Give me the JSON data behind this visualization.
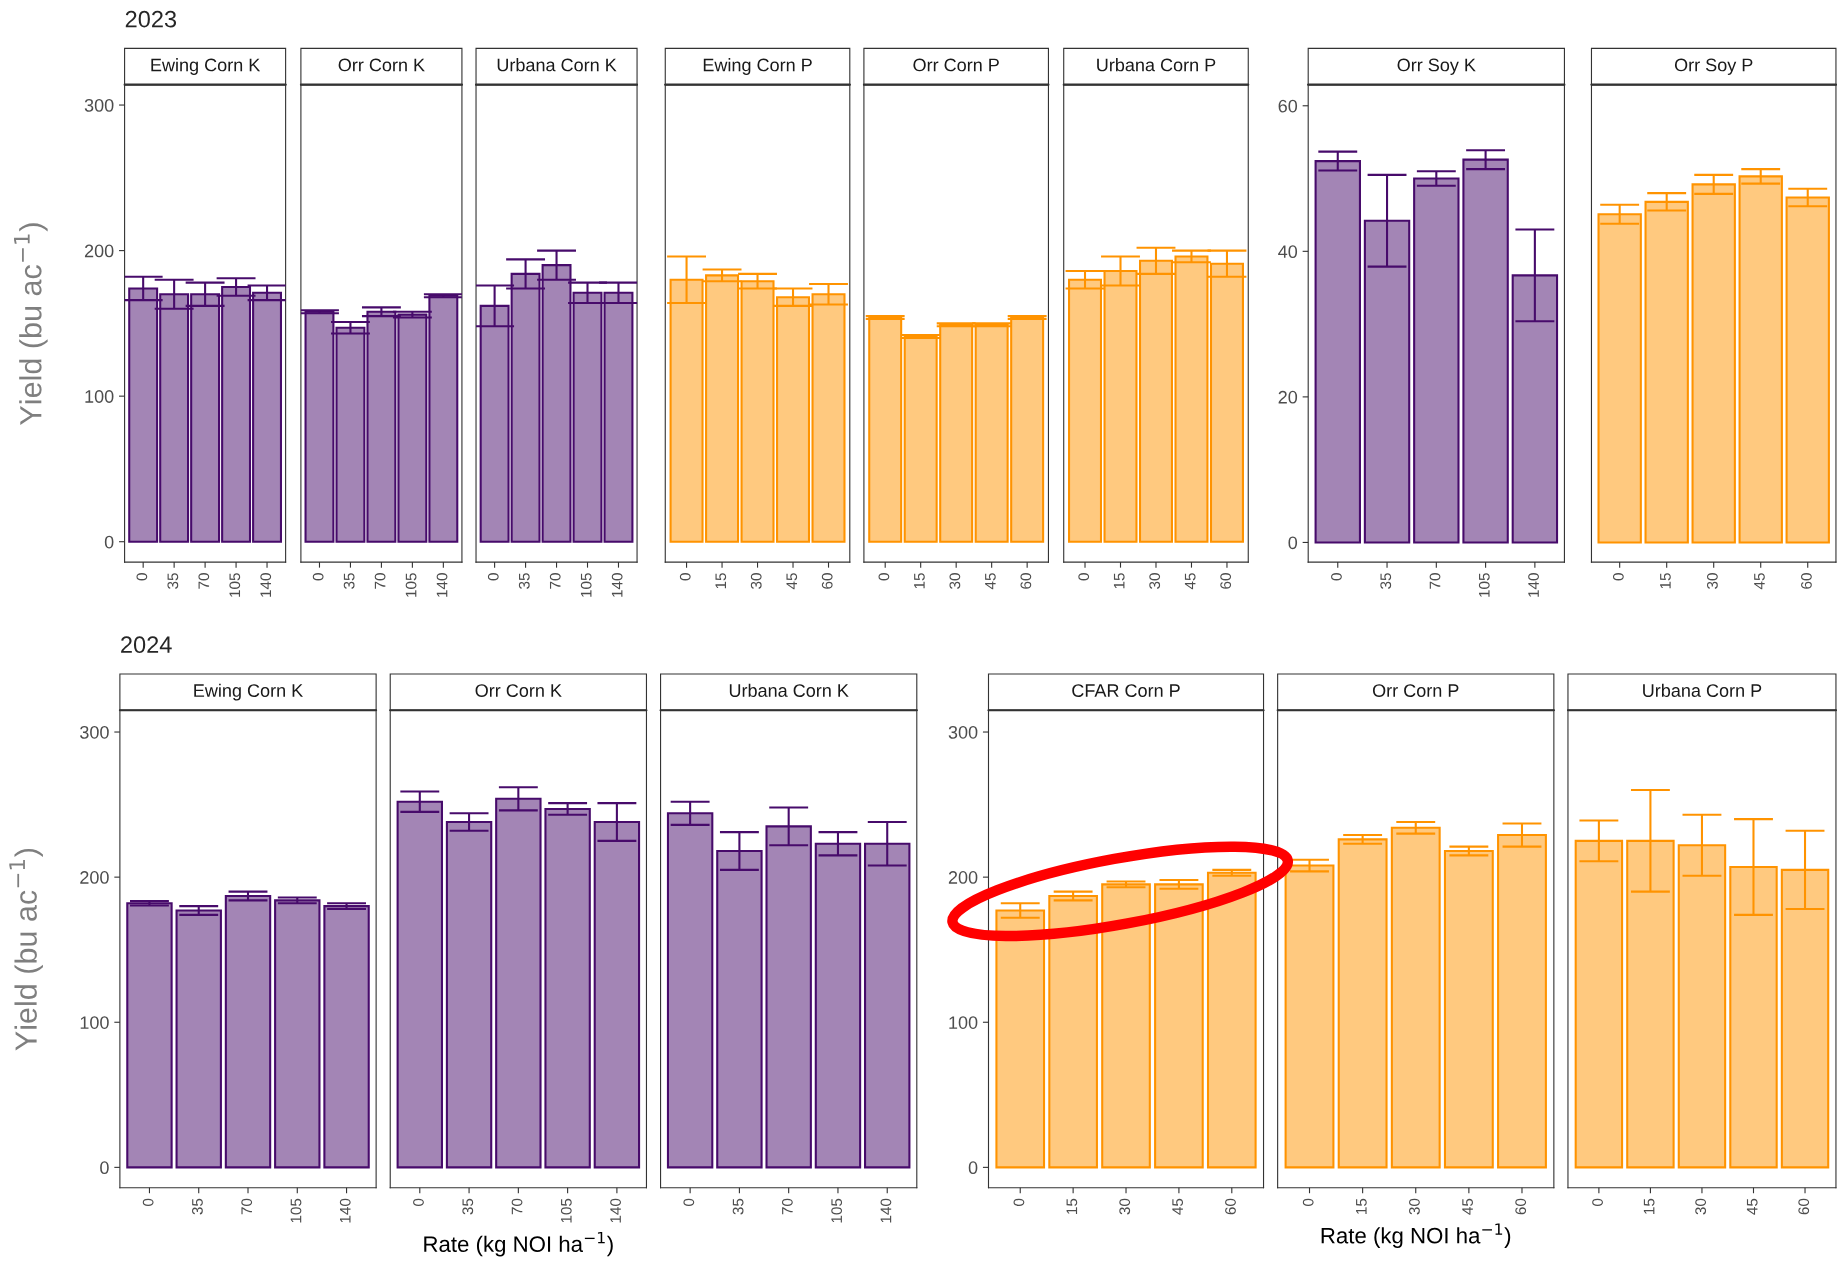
{
  "chart_data": [
    {
      "type": "bar",
      "title": "Ewing Corn K",
      "annotations": [
        "2023"
      ],
      "ylabel": "Yield (bu ac$^{−1}$)",
      "categories": [
        "0",
        "35",
        "70",
        "105",
        "140"
      ],
      "color": "#a385b5",
      "values": [
        174,
        170,
        170,
        175,
        171
      ],
      "errors": [
        8,
        10,
        8,
        6,
        5
      ],
      "ylim": [
        -14,
        314
      ],
      "yticks": [
        0,
        100,
        200,
        300
      ]
    },
    {
      "type": "bar",
      "title": "Orr Corn K",
      "categories": [
        "0",
        "35",
        "70",
        "105",
        "140"
      ],
      "color": "#a385b5",
      "values": [
        158,
        147,
        158,
        156,
        169
      ],
      "errors": [
        1,
        4,
        3,
        2,
        1
      ],
      "ylim": [
        -14,
        314
      ],
      "yticks": [
        0,
        100,
        200,
        300
      ],
      "tick_labels": "x"
    },
    {
      "type": "bar",
      "title": "Urbana Corn K",
      "categories": [
        "0",
        "35",
        "70",
        "105",
        "140"
      ],
      "color": "#a385b5",
      "values": [
        162,
        184,
        190,
        171,
        171
      ],
      "errors": [
        14,
        10,
        10,
        7,
        7
      ],
      "ylim": [
        -14,
        314
      ],
      "yticks": [
        0,
        100,
        200,
        300
      ],
      "tick_labels": "x"
    },
    {
      "type": "bar",
      "title": "Ewing Corn P",
      "categories": [
        "0",
        "15",
        "30",
        "45",
        "60"
      ],
      "color": "#ffc97f",
      "values": [
        180,
        183,
        179,
        168,
        170
      ],
      "errors": [
        16,
        4,
        5,
        6,
        7
      ],
      "ylim": [
        -14,
        314
      ],
      "yticks": [
        0,
        100,
        200,
        300
      ],
      "tick_labels": "x"
    },
    {
      "type": "bar",
      "title": "Orr Corn P",
      "categories": [
        "0",
        "15",
        "30",
        "45",
        "60"
      ],
      "color": "#ffc97f",
      "values": [
        154,
        141,
        149,
        149,
        154
      ],
      "errors": [
        1,
        1,
        1,
        1,
        1
      ],
      "ylim": [
        -14,
        314
      ],
      "yticks": [
        0,
        100,
        200,
        300
      ],
      "tick_labels": "x"
    },
    {
      "type": "bar",
      "title": "Urbana Corn P",
      "categories": [
        "0",
        "15",
        "30",
        "45",
        "60"
      ],
      "color": "#ffc97f",
      "values": [
        180,
        186,
        193,
        196,
        191
      ],
      "errors": [
        6,
        10,
        9,
        4,
        9
      ],
      "ylim": [
        -14,
        314
      ],
      "yticks": [
        0,
        100,
        200,
        300
      ],
      "tick_labels": "x"
    },
    {
      "type": "bar",
      "title": "Orr Soy K",
      "categories": [
        "0",
        "35",
        "70",
        "105",
        "140"
      ],
      "color": "#a385b5",
      "values": [
        52.4,
        44.2,
        50.0,
        52.6,
        36.7
      ],
      "errors": [
        1.3,
        6.3,
        1.0,
        1.3,
        6.3
      ],
      "ylim": [
        -2.7,
        62.9
      ],
      "yticks": [
        0,
        20,
        40,
        60
      ]
    },
    {
      "type": "bar",
      "title": "Orr Soy P",
      "categories": [
        "0",
        "15",
        "30",
        "45",
        "60"
      ],
      "color": "#ffc97f",
      "values": [
        45.1,
        46.8,
        49.2,
        50.3,
        47.4
      ],
      "errors": [
        1.3,
        1.2,
        1.3,
        1.0,
        1.2
      ],
      "ylim": [
        -2.7,
        62.9
      ],
      "yticks": [
        0,
        20,
        40,
        60
      ],
      "tick_labels": "x"
    },
    {
      "type": "bar",
      "title": "Ewing Corn K",
      "annotations": [
        "2024"
      ],
      "ylabel": "Yield (bu ac$^{−1}$)",
      "categories": [
        "0",
        "35",
        "70",
        "105",
        "140"
      ],
      "color": "#a385b5",
      "values": [
        182,
        177,
        187,
        184,
        180
      ],
      "errors": [
        1.5,
        3,
        3,
        2,
        2
      ],
      "ylim": [
        -14,
        315
      ],
      "yticks": [
        0,
        100,
        200,
        300
      ]
    },
    {
      "type": "bar",
      "title": "Orr Corn K",
      "xlabel": "Rate (kg NOI ha$^{−1}$)",
      "categories": [
        "0",
        "35",
        "70",
        "105",
        "140"
      ],
      "color": "#a385b5",
      "values": [
        252,
        238,
        254,
        247,
        238
      ],
      "errors": [
        7,
        6,
        8,
        4,
        13
      ],
      "ylim": [
        -14,
        315
      ],
      "yticks": [
        0,
        100,
        200,
        300
      ],
      "tick_labels": "x"
    },
    {
      "type": "bar",
      "title": "Urbana Corn K",
      "categories": [
        "0",
        "35",
        "70",
        "105",
        "140"
      ],
      "color": "#a385b5",
      "values": [
        244,
        218,
        235,
        223,
        223
      ],
      "errors": [
        8,
        13,
        13,
        8,
        15
      ],
      "ylim": [
        -14,
        315
      ],
      "yticks": [
        0,
        100,
        200,
        300
      ],
      "tick_labels": "x"
    },
    {
      "type": "bar",
      "title": "CFAR Corn P",
      "categories": [
        "0",
        "15",
        "30",
        "45",
        "60"
      ],
      "color": "#ffc97f",
      "values": [
        177,
        187,
        195,
        195,
        203
      ],
      "errors": [
        5,
        3,
        2,
        3,
        2
      ],
      "ylim": [
        -14,
        315
      ],
      "yticks": [
        0,
        100,
        200,
        300
      ]
    },
    {
      "type": "bar",
      "title": "Orr Corn P",
      "xlabel": "Rate (kg NOI ha$^{−1}$)",
      "categories": [
        "0",
        "15",
        "30",
        "45",
        "60"
      ],
      "color": "#ffc97f",
      "values": [
        208,
        226,
        234,
        218,
        229
      ],
      "errors": [
        4,
        3,
        4,
        3,
        8
      ],
      "ylim": [
        -14,
        315
      ],
      "yticks": [
        0,
        100,
        200,
        300
      ],
      "tick_labels": "x"
    },
    {
      "type": "bar",
      "title": "Urbana Corn P",
      "categories": [
        "0",
        "15",
        "30",
        "45",
        "60"
      ],
      "color": "#ffc97f",
      "values": [
        225,
        225,
        222,
        207,
        205
      ],
      "errors": [
        14,
        35,
        21,
        33,
        27
      ],
      "ylim": [
        -14,
        315
      ],
      "yticks": [
        0,
        100,
        200,
        300
      ],
      "tick_labels": "x"
    }
  ]
}
